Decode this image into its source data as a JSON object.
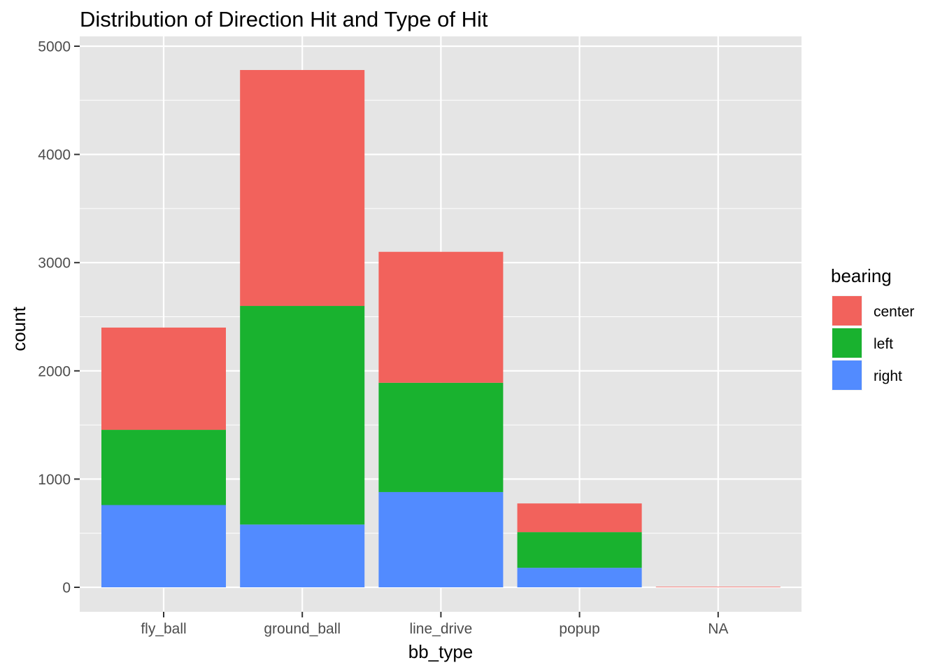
{
  "chart_data": {
    "type": "bar",
    "stacked": true,
    "title": "Distribution of Direction Hit and Type of Hit",
    "xlabel": "bb_type",
    "ylabel": "count",
    "categories": [
      "fly_ball",
      "ground_ball",
      "line_drive",
      "popup",
      "NA"
    ],
    "ylim": [
      0,
      5000
    ],
    "yticks": [
      0,
      1000,
      2000,
      3000,
      4000,
      5000
    ],
    "grid": true,
    "legend": {
      "title": "bearing",
      "position": "right"
    },
    "series": [
      {
        "name": "right",
        "color": "#528BFF",
        "values": [
          760,
          580,
          880,
          180,
          0
        ]
      },
      {
        "name": "left",
        "color": "#19B22F",
        "values": [
          695,
          2020,
          1010,
          330,
          0
        ]
      },
      {
        "name": "center",
        "color": "#F2625C",
        "values": [
          945,
          2180,
          1210,
          265,
          5
        ]
      }
    ],
    "legend_order": [
      "center",
      "left",
      "right"
    ],
    "colors": {
      "panel_bg": "#E5E5E5",
      "grid": "#FFFFFF",
      "tick_text": "#4d4d4d"
    }
  }
}
